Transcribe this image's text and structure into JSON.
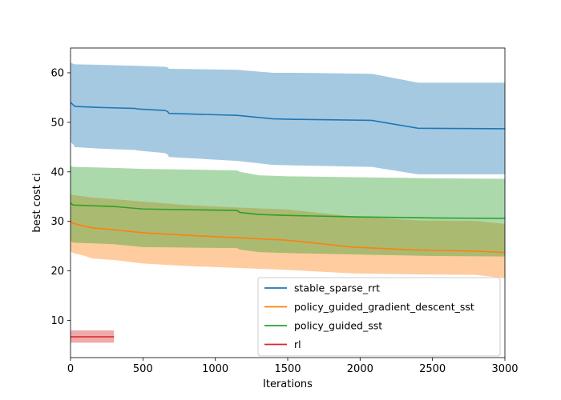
{
  "chart_data": {
    "type": "line",
    "xlabel": "Iterations",
    "ylabel": "best cost ci",
    "xlim": [
      0,
      3000
    ],
    "ylim": [
      2.5,
      65
    ],
    "xticks": [
      0,
      500,
      1000,
      1500,
      2000,
      2500,
      3000
    ],
    "yticks": [
      10,
      20,
      30,
      40,
      50,
      60
    ],
    "grid": false,
    "legend_position": "lower-right",
    "series": [
      {
        "name": "stable_sparse_rrt",
        "color": "#1f77b4",
        "band_opacity": 0.4,
        "x": [
          0,
          20,
          30,
          200,
          450,
          460,
          650,
          670,
          680,
          1150,
          1400,
          1550,
          2080,
          2400,
          3000
        ],
        "mean": [
          54.0,
          53.5,
          53.2,
          53.0,
          52.8,
          52.7,
          52.4,
          52.2,
          51.8,
          51.4,
          50.7,
          50.6,
          50.4,
          48.8,
          48.7
        ],
        "upper": [
          62.0,
          61.8,
          61.7,
          61.6,
          61.4,
          61.4,
          61.2,
          61.1,
          60.8,
          60.6,
          60.0,
          60.0,
          59.8,
          58.0,
          58.0
        ],
        "lower": [
          46.0,
          45.5,
          45.0,
          44.7,
          44.4,
          44.3,
          43.8,
          43.5,
          43.0,
          42.2,
          41.4,
          41.3,
          41.0,
          39.5,
          39.5
        ]
      },
      {
        "name": "policy_guided_gradient_descent_sst",
        "color": "#ff7f0e",
        "band_opacity": 0.4,
        "x": [
          0,
          20,
          100,
          150,
          300,
          500,
          800,
          1150,
          1500,
          1950,
          2400,
          2800,
          3000
        ],
        "mean": [
          30.0,
          29.6,
          29.0,
          28.7,
          28.3,
          27.7,
          27.2,
          26.7,
          26.2,
          24.8,
          24.2,
          24.0,
          23.7
        ],
        "upper": [
          35.5,
          35.3,
          35.0,
          34.8,
          34.5,
          34.0,
          33.3,
          32.8,
          32.4,
          31.0,
          30.2,
          30.1,
          29.5
        ],
        "lower": [
          24.0,
          23.6,
          23.0,
          22.5,
          22.2,
          21.5,
          21.0,
          20.6,
          20.2,
          19.5,
          19.3,
          19.2,
          18.5
        ]
      },
      {
        "name": "policy_guided_sst",
        "color": "#2ca02c",
        "band_opacity": 0.4,
        "x": [
          0,
          20,
          300,
          500,
          1150,
          1170,
          1300,
          1500,
          2000,
          2500,
          3000
        ],
        "mean": [
          33.7,
          33.3,
          33.0,
          32.5,
          32.2,
          31.8,
          31.4,
          31.2,
          30.9,
          30.7,
          30.6
        ],
        "upper": [
          41.2,
          41.0,
          40.8,
          40.6,
          40.3,
          40.0,
          39.3,
          39.1,
          38.9,
          38.7,
          38.6
        ],
        "lower": [
          26.0,
          25.7,
          25.4,
          24.8,
          24.6,
          24.3,
          23.8,
          23.6,
          23.3,
          23.0,
          22.9
        ]
      },
      {
        "name": "rl",
        "color": "#d62728",
        "band_opacity": 0.4,
        "x": [
          0,
          300
        ],
        "mean": [
          6.7,
          6.7
        ],
        "upper": [
          8.0,
          8.0
        ],
        "lower": [
          5.5,
          5.5
        ]
      }
    ]
  }
}
